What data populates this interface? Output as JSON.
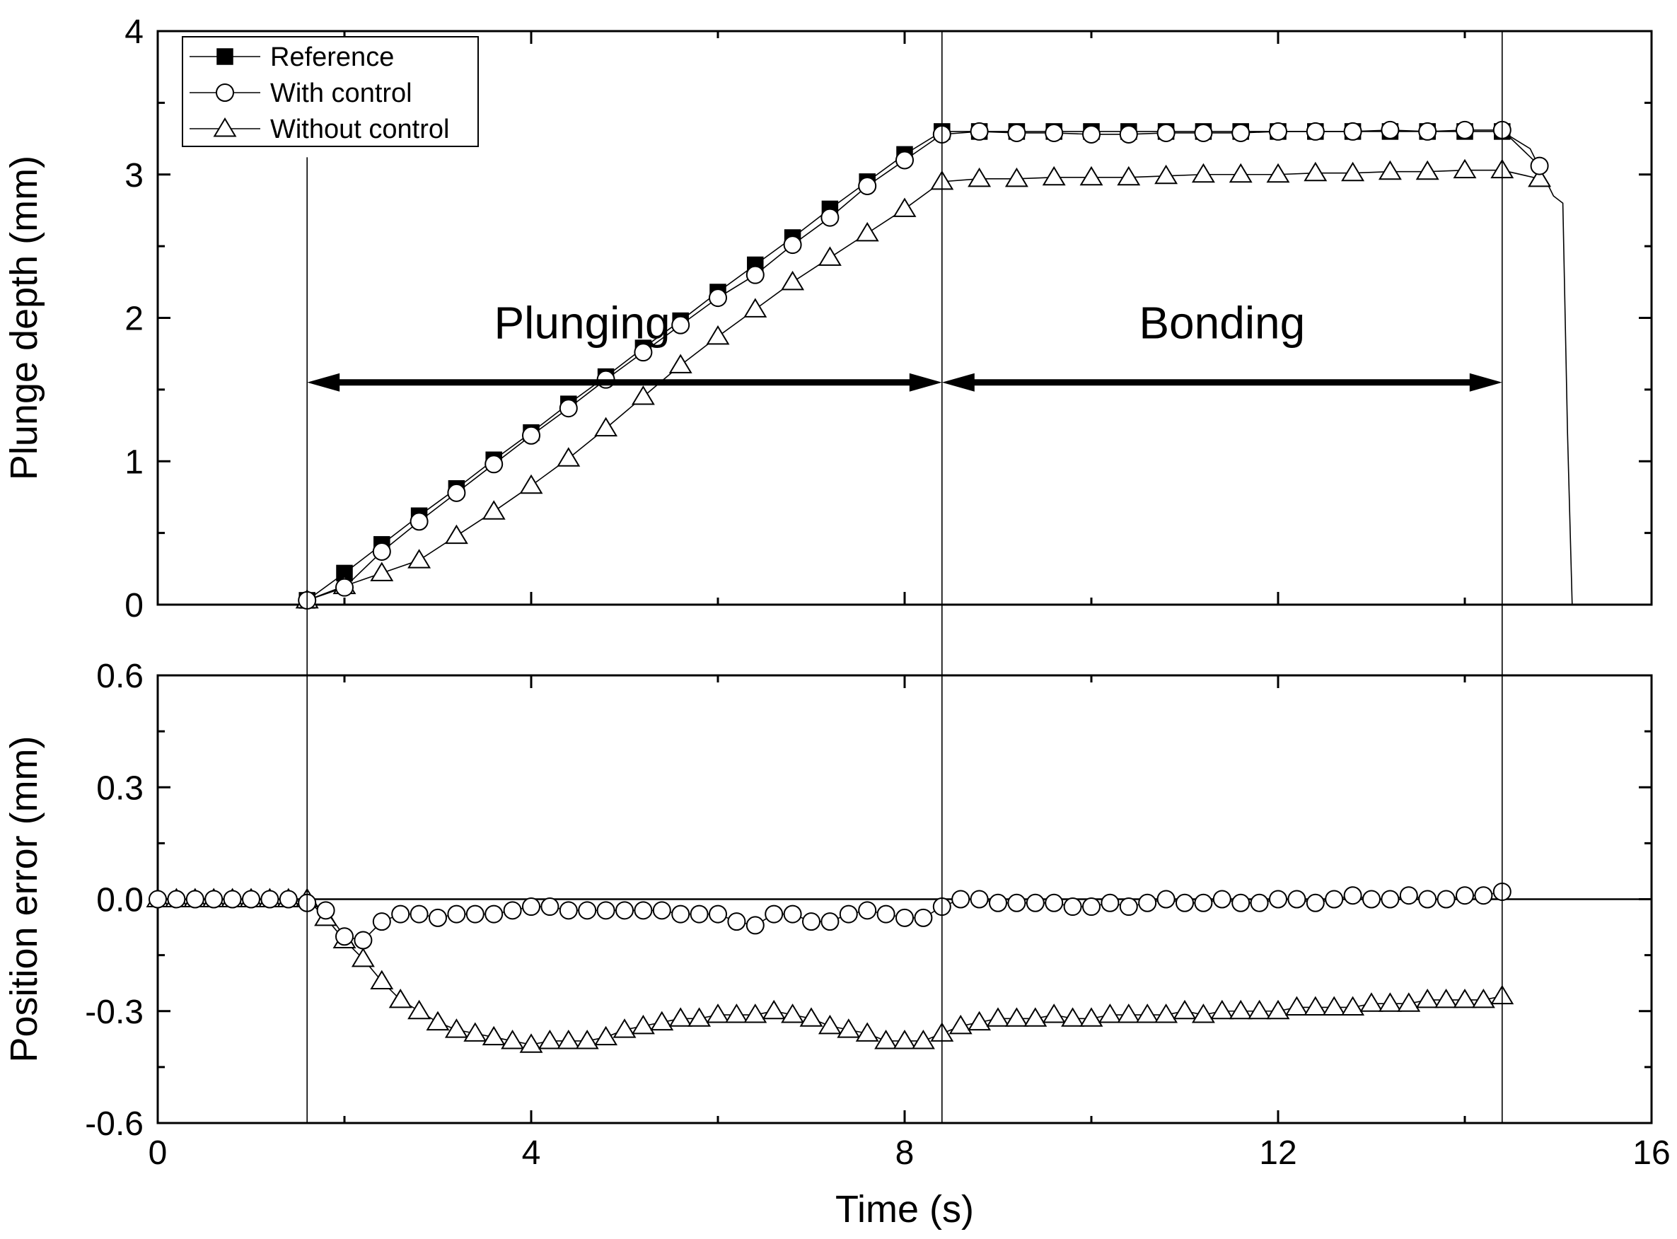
{
  "chart_data": [
    {
      "type": "line",
      "panel": "top",
      "ylabel": "Plunge depth (mm)",
      "xlabel": "",
      "xlim": [
        0,
        16
      ],
      "ylim": [
        0,
        4
      ],
      "yticks": [
        0,
        1,
        2,
        3,
        4
      ],
      "ytick_labels": [
        "0",
        "1",
        "2",
        "3",
        "4"
      ],
      "legend": {
        "placement": "top-left",
        "entries": [
          "Reference",
          "With control",
          "Without control"
        ]
      },
      "annotations": {
        "plunging_label": "Plunging",
        "bonding_label": "Bonding",
        "plunging_range": [
          1.6,
          8.4
        ],
        "bonding_range": [
          8.4,
          14.4
        ],
        "arrow_y": 1.55
      },
      "series": [
        {
          "name": "Reference",
          "marker": "filled-square",
          "x": [
            1.6,
            2.0,
            2.4,
            2.8,
            3.2,
            3.6,
            4.0,
            4.4,
            4.8,
            5.2,
            5.6,
            6.0,
            6.4,
            6.8,
            7.2,
            7.6,
            8.0,
            8.4,
            8.8,
            9.2,
            9.6,
            10.0,
            10.4,
            10.8,
            11.2,
            11.6,
            12.0,
            12.4,
            12.8,
            13.2,
            13.6,
            14.0,
            14.4
          ],
          "values": [
            0.03,
            0.22,
            0.42,
            0.62,
            0.81,
            1.01,
            1.2,
            1.4,
            1.59,
            1.79,
            1.98,
            2.18,
            2.37,
            2.56,
            2.76,
            2.95,
            3.14,
            3.3,
            3.3,
            3.3,
            3.3,
            3.3,
            3.3,
            3.3,
            3.3,
            3.3,
            3.3,
            3.3,
            3.3,
            3.3,
            3.3,
            3.3,
            3.3
          ]
        },
        {
          "name": "With control",
          "marker": "open-circle",
          "x": [
            1.6,
            2.0,
            2.4,
            2.8,
            3.2,
            3.6,
            4.0,
            4.4,
            4.8,
            5.2,
            5.6,
            6.0,
            6.4,
            6.8,
            7.2,
            7.6,
            8.0,
            8.4,
            8.8,
            9.2,
            9.6,
            10.0,
            10.4,
            10.8,
            11.2,
            11.6,
            12.0,
            12.4,
            12.8,
            13.2,
            13.6,
            14.0,
            14.4,
            14.8
          ],
          "values": [
            0.03,
            0.12,
            0.37,
            0.58,
            0.78,
            0.98,
            1.18,
            1.37,
            1.57,
            1.76,
            1.95,
            2.14,
            2.3,
            2.51,
            2.7,
            2.92,
            3.1,
            3.28,
            3.3,
            3.29,
            3.29,
            3.28,
            3.28,
            3.29,
            3.29,
            3.29,
            3.3,
            3.3,
            3.3,
            3.31,
            3.3,
            3.31,
            3.31,
            3.06
          ]
        },
        {
          "name": "Without control",
          "marker": "open-triangle",
          "x": [
            1.6,
            2.0,
            2.4,
            2.8,
            3.2,
            3.6,
            4.0,
            4.4,
            4.8,
            5.2,
            5.6,
            6.0,
            6.4,
            6.8,
            7.2,
            7.6,
            8.0,
            8.4,
            8.8,
            9.2,
            9.6,
            10.0,
            10.4,
            10.8,
            11.2,
            11.6,
            12.0,
            12.4,
            12.8,
            13.2,
            13.6,
            14.0,
            14.4,
            14.8
          ],
          "values": [
            0.03,
            0.13,
            0.22,
            0.31,
            0.48,
            0.65,
            0.83,
            1.02,
            1.23,
            1.45,
            1.67,
            1.87,
            2.06,
            2.25,
            2.42,
            2.59,
            2.76,
            2.95,
            2.97,
            2.97,
            2.98,
            2.98,
            2.98,
            2.99,
            3.0,
            3.0,
            3.0,
            3.01,
            3.01,
            3.02,
            3.02,
            3.03,
            3.03,
            2.97
          ]
        }
      ],
      "tail_curve": {
        "x": [
          14.4,
          14.7,
          14.95,
          15.05,
          15.1,
          15.15
        ],
        "values": [
          3.3,
          3.18,
          2.85,
          2.8,
          1.2,
          0.0
        ]
      }
    },
    {
      "type": "line",
      "panel": "bottom",
      "xlabel": "Time (s)",
      "ylabel": "Position error (mm)",
      "xlim": [
        0,
        16
      ],
      "ylim": [
        -0.6,
        0.6
      ],
      "xticks": [
        0,
        4,
        8,
        12,
        16
      ],
      "xtick_labels": [
        "0",
        "4",
        "8",
        "12",
        "16"
      ],
      "yticks": [
        0.6,
        0.3,
        0.0,
        -0.3,
        -0.6
      ],
      "ytick_labels": [
        "0.6",
        "0.3",
        "0.0",
        "-0.3",
        "-0.6"
      ],
      "series": [
        {
          "name": "With control",
          "marker": "open-circle",
          "x": [
            0.0,
            0.2,
            0.4,
            0.6,
            0.8,
            1.0,
            1.2,
            1.4,
            1.6,
            1.8,
            2.0,
            2.2,
            2.4,
            2.6,
            2.8,
            3.0,
            3.2,
            3.4,
            3.6,
            3.8,
            4.0,
            4.2,
            4.4,
            4.6,
            4.8,
            5.0,
            5.2,
            5.4,
            5.6,
            5.8,
            6.0,
            6.2,
            6.4,
            6.6,
            6.8,
            7.0,
            7.2,
            7.4,
            7.6,
            7.8,
            8.0,
            8.2,
            8.4,
            8.6,
            8.8,
            9.0,
            9.2,
            9.4,
            9.6,
            9.8,
            10.0,
            10.2,
            10.4,
            10.6,
            10.8,
            11.0,
            11.2,
            11.4,
            11.6,
            11.8,
            12.0,
            12.2,
            12.4,
            12.6,
            12.8,
            13.0,
            13.2,
            13.4,
            13.6,
            13.8,
            14.0,
            14.2,
            14.4
          ],
          "values": [
            0.0,
            0.0,
            0.0,
            0.0,
            0.0,
            0.0,
            0.0,
            0.0,
            -0.01,
            -0.03,
            -0.1,
            -0.11,
            -0.06,
            -0.04,
            -0.04,
            -0.05,
            -0.04,
            -0.04,
            -0.04,
            -0.03,
            -0.02,
            -0.02,
            -0.03,
            -0.03,
            -0.03,
            -0.03,
            -0.03,
            -0.03,
            -0.04,
            -0.04,
            -0.04,
            -0.06,
            -0.07,
            -0.04,
            -0.04,
            -0.06,
            -0.06,
            -0.04,
            -0.03,
            -0.04,
            -0.05,
            -0.05,
            -0.02,
            0.0,
            0.0,
            -0.01,
            -0.01,
            -0.01,
            -0.01,
            -0.02,
            -0.02,
            -0.01,
            -0.02,
            -0.01,
            0.0,
            -0.01,
            -0.01,
            0.0,
            -0.01,
            -0.01,
            0.0,
            0.0,
            -0.01,
            0.0,
            0.01,
            0.0,
            0.0,
            0.01,
            0.0,
            0.0,
            0.01,
            0.01,
            0.02
          ]
        },
        {
          "name": "Without control",
          "marker": "open-triangle",
          "x": [
            0.0,
            0.2,
            0.4,
            0.6,
            0.8,
            1.0,
            1.2,
            1.4,
            1.6,
            1.8,
            2.0,
            2.2,
            2.4,
            2.6,
            2.8,
            3.0,
            3.2,
            3.4,
            3.6,
            3.8,
            4.0,
            4.2,
            4.4,
            4.6,
            4.8,
            5.0,
            5.2,
            5.4,
            5.6,
            5.8,
            6.0,
            6.2,
            6.4,
            6.6,
            6.8,
            7.0,
            7.2,
            7.4,
            7.6,
            7.8,
            8.0,
            8.2,
            8.4,
            8.6,
            8.8,
            9.0,
            9.2,
            9.4,
            9.6,
            9.8,
            10.0,
            10.2,
            10.4,
            10.6,
            10.8,
            11.0,
            11.2,
            11.4,
            11.6,
            11.8,
            12.0,
            12.2,
            12.4,
            12.6,
            12.8,
            13.0,
            13.2,
            13.4,
            13.6,
            13.8,
            14.0,
            14.2,
            14.4
          ],
          "values": [
            0.0,
            0.0,
            0.0,
            0.0,
            0.0,
            0.0,
            0.0,
            0.0,
            0.0,
            -0.05,
            -0.11,
            -0.16,
            -0.22,
            -0.27,
            -0.3,
            -0.33,
            -0.35,
            -0.36,
            -0.37,
            -0.38,
            -0.39,
            -0.38,
            -0.38,
            -0.38,
            -0.37,
            -0.35,
            -0.34,
            -0.33,
            -0.32,
            -0.32,
            -0.31,
            -0.31,
            -0.31,
            -0.3,
            -0.31,
            -0.32,
            -0.34,
            -0.35,
            -0.36,
            -0.38,
            -0.38,
            -0.38,
            -0.36,
            -0.34,
            -0.33,
            -0.32,
            -0.32,
            -0.32,
            -0.31,
            -0.32,
            -0.32,
            -0.31,
            -0.31,
            -0.31,
            -0.31,
            -0.3,
            -0.31,
            -0.3,
            -0.3,
            -0.3,
            -0.3,
            -0.29,
            -0.29,
            -0.29,
            -0.29,
            -0.28,
            -0.28,
            -0.28,
            -0.27,
            -0.27,
            -0.27,
            -0.27,
            -0.26
          ]
        }
      ]
    }
  ],
  "phase_boundaries_s": [
    1.6,
    8.4,
    14.4
  ]
}
